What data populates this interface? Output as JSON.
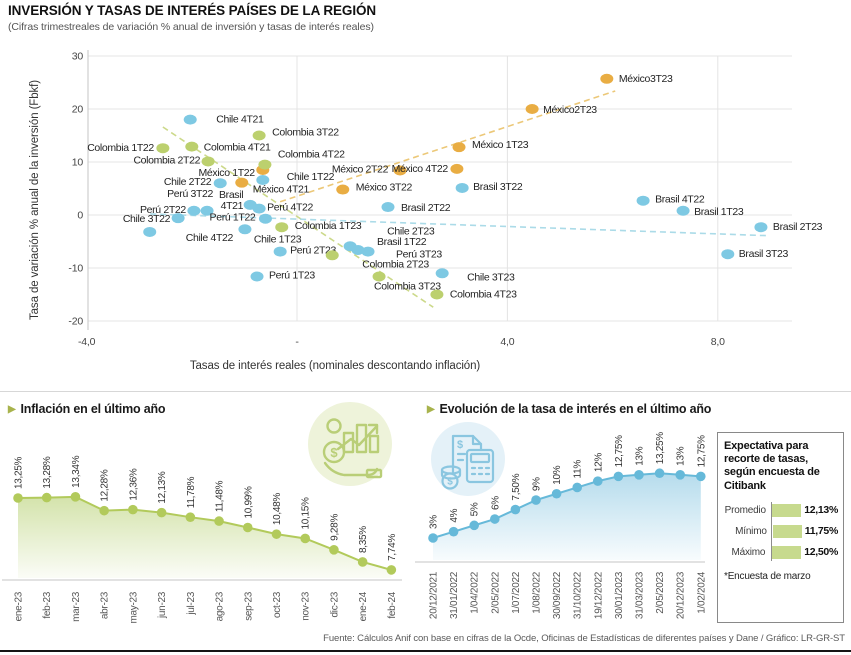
{
  "icons": {
    "left_chart": "money-growth-hand-icon",
    "right_chart": "calculator-invoice-icon",
    "section_marker": "triangle-right-icon"
  },
  "footer": {
    "source": "Fuente: Cálculos Anif con base en cifras de la Ocde, Oficinas de Estadísticas de diferentes países y Dane / Gráfico: LR-GR-ST"
  },
  "chart_data": [
    {
      "type": "scatter",
      "title": "INVERSIÓN Y TASAS DE INTERÉS PAÍSES DE LA REGIÓN",
      "subtitle": "(Cifras trimestreales de variación % anual de inversión y tasas de interés reales)",
      "xlabel": "Tasas de interés reales (nominales descontando inflación)",
      "ylabel": "Tasa de variación % anual de la inversión (Fbkf)",
      "xlim": [
        -4,
        10.5
      ],
      "ylim": [
        -20,
        30
      ],
      "grid": true,
      "x_ticks": [
        {
          "v": -4,
          "label": "-4,0"
        },
        {
          "v": 0,
          "label": "-"
        },
        {
          "v": 4,
          "label": "4,0"
        },
        {
          "v": 8,
          "label": "8,0"
        }
      ],
      "y_ticks": [
        30,
        20,
        10,
        0,
        -10,
        -20
      ],
      "series": [
        {
          "name": "Chile",
          "color": "#7ec9e3",
          "points": [
            {
              "label": "Chile 4T21",
              "x": -2.03,
              "y": 18.0,
              "dx": 26,
              "dy": 3,
              "anchor": "start"
            },
            {
              "label": "Chile 1T22",
              "x": -0.65,
              "y": 6.6,
              "dx": 24,
              "dy": 0,
              "anchor": "start"
            },
            {
              "label": "Chile 2T22",
              "x": -1.46,
              "y": 6.0,
              "dx": -9,
              "dy": 2,
              "anchor": "end"
            },
            {
              "label": "Chile 3T22",
              "x": -2.26,
              "y": -0.6,
              "dx": -8,
              "dy": 4,
              "anchor": "end"
            },
            {
              "label": "Chile 4T22",
              "x": -2.8,
              "y": -3.2,
              "dx": 36,
              "dy": 9,
              "anchor": "start"
            },
            {
              "label": "Chile 1T23",
              "x": -0.99,
              "y": -2.7,
              "dx": 9,
              "dy": 13,
              "anchor": "start"
            },
            {
              "label": "Chile 2T23",
              "x": 1.01,
              "y": -5.9,
              "dx": 37,
              "dy": -12,
              "anchor": "start"
            },
            {
              "label": "Chile 3T23",
              "x": 2.76,
              "y": -11.0,
              "dx": 25,
              "dy": 7,
              "anchor": "start"
            }
          ]
        },
        {
          "name": "Perú",
          "color": "#7ec9e3",
          "points": [
            {
              "label": "Perú 2T22",
              "x": -1.96,
              "y": 0.8,
              "dx": -8,
              "dy": 2,
              "anchor": "end"
            },
            {
              "label": "Perú 3T22",
              "x": -1.71,
              "y": 0.8,
              "dx": 6,
              "dy": -14,
              "anchor": "end"
            },
            {
              "label": "Perú 1T22",
              "x": -0.6,
              "y": -0.7,
              "dx": -10,
              "dy": 2,
              "anchor": "end"
            },
            {
              "label": "Perú 4T22",
              "x": -0.72,
              "y": 1.2,
              "dx": 8,
              "dy": 2,
              "anchor": "start"
            },
            {
              "label": "Perú 2T23",
              "x": -0.32,
              "y": -6.9,
              "dx": 10,
              "dy": 2,
              "anchor": "start"
            },
            {
              "label": "Perú 3T23",
              "x": 1.35,
              "y": -6.9,
              "dx": 28,
              "dy": 6,
              "anchor": "start"
            },
            {
              "label": "Perú 1T23",
              "x": -0.76,
              "y": -11.6,
              "dx": 12,
              "dy": 2,
              "anchor": "start"
            }
          ]
        },
        {
          "name": "Brasil",
          "color": "#7ec9e3",
          "points": [
            {
              "label": "Brasil 4T21",
              "lines": [
                "Brasil",
                "4T21"
              ],
              "x": -0.89,
              "y": 1.9,
              "dx": -7,
              "dy": -7,
              "anchor": "end"
            },
            {
              "label": "Brasil 1T22",
              "x": 1.16,
              "y": -6.6,
              "dx": 19,
              "dy": -5,
              "anchor": "start"
            },
            {
              "label": "Brasil 2T22",
              "x": 1.73,
              "y": 1.5,
              "dx": 13,
              "dy": 4,
              "anchor": "start"
            },
            {
              "label": "Brasil 3T22",
              "x": 3.14,
              "y": 5.1,
              "dx": 11,
              "dy": 2,
              "anchor": "start"
            },
            {
              "label": "Brasil 4T22",
              "x": 6.58,
              "y": 2.7,
              "dx": 12,
              "dy": 2,
              "anchor": "start"
            },
            {
              "label": "Brasil 1T23",
              "x": 7.34,
              "y": 0.8,
              "dx": 11,
              "dy": 4,
              "anchor": "start"
            },
            {
              "label": "Brasil 2T23",
              "x": 8.82,
              "y": -2.3,
              "dx": 12,
              "dy": 3,
              "anchor": "start"
            },
            {
              "label": "Brasil 3T23",
              "x": 8.19,
              "y": -7.4,
              "dx": 11,
              "dy": 3,
              "anchor": "start"
            }
          ]
        },
        {
          "name": "México",
          "color": "#e9ad43",
          "points": [
            {
              "label": "México 4T21",
              "x": -1.05,
              "y": 6.1,
              "dx": 11,
              "dy": 10,
              "anchor": "start"
            },
            {
              "label": "México 1T22",
              "x": -0.65,
              "y": 8.5,
              "dx": -8,
              "dy": 6,
              "anchor": "end"
            },
            {
              "label": "México 2T22",
              "x": 1.96,
              "y": 8.4,
              "dx": -12,
              "dy": 2,
              "anchor": "end"
            },
            {
              "label": "México 3T22",
              "x": 0.87,
              "y": 4.8,
              "dx": 13,
              "dy": 1,
              "anchor": "start"
            },
            {
              "label": "México 4T22",
              "x": 3.04,
              "y": 8.7,
              "dx": -9,
              "dy": 3,
              "anchor": "end"
            },
            {
              "label": "México 1T23",
              "x": 3.08,
              "y": 12.8,
              "dx": 13,
              "dy": 1,
              "anchor": "start"
            },
            {
              "label": "México2T23",
              "x": 4.47,
              "y": 20.0,
              "dx": 11,
              "dy": 4,
              "anchor": "start"
            },
            {
              "label": "México3T23",
              "x": 5.89,
              "y": 25.7,
              "dx": 12,
              "dy": 3,
              "anchor": "start"
            }
          ]
        },
        {
          "name": "Colombia",
          "color": "#bcd06e",
          "points": [
            {
              "label": "Colombia 1T22",
              "x": -2.55,
              "y": 12.6,
              "dx": -9,
              "dy": 3,
              "anchor": "end"
            },
            {
              "label": "Colombia 4T21",
              "x": -2.0,
              "y": 12.9,
              "dx": 12,
              "dy": 4,
              "anchor": "start"
            },
            {
              "label": "Colombia 2T22",
              "x": -1.69,
              "y": 10.1,
              "dx": -8,
              "dy": 2,
              "anchor": "end"
            },
            {
              "label": "Colombia 3T22",
              "x": -0.72,
              "y": 15.0,
              "dx": 13,
              "dy": 0,
              "anchor": "start"
            },
            {
              "label": "Colombia 4T22",
              "x": -0.61,
              "y": 9.5,
              "dx": 13,
              "dy": -7,
              "anchor": "start"
            },
            {
              "label": "Colombia 1T23",
              "x": -0.29,
              "y": -2.3,
              "dx": 13,
              "dy": 2,
              "anchor": "start"
            },
            {
              "label": "Colombia 2T23",
              "x": 0.67,
              "y": -7.6,
              "dx": 30,
              "dy": 12,
              "anchor": "start"
            },
            {
              "label": "Colombia 3T23",
              "x": 1.56,
              "y": -11.6,
              "dx": -5,
              "dy": 13,
              "anchor": "start"
            },
            {
              "label": "Colombia 4T23",
              "x": 2.66,
              "y": -15.0,
              "dx": 13,
              "dy": 3,
              "anchor": "start"
            }
          ]
        }
      ],
      "trendlines": [
        {
          "name": "colombia-trend",
          "color": "#ccd98a",
          "x1": -2.55,
          "y1": 16.6,
          "x2": 2.59,
          "y2": -17.4
        },
        {
          "name": "mexico-trend",
          "color": "#ecc878",
          "x1": -0.32,
          "y1": 2.5,
          "x2": 6.05,
          "y2": 23.4
        },
        {
          "name": "brasil-trend",
          "color": "#abdbe8",
          "x1": -2.79,
          "y1": 0.2,
          "x2": 8.95,
          "y2": -3.9
        }
      ]
    },
    {
      "type": "line",
      "title": "Inflación en el último año",
      "color": "#b2ca5b",
      "x": [
        "ene-23",
        "feb-23",
        "mar-23",
        "abr-23",
        "may-23",
        "jun-23",
        "jul-23",
        "ago-23",
        "sep-23",
        "oct-23",
        "nov-23",
        "dic-23",
        "ene-24",
        "feb-24"
      ],
      "values": [
        13.25,
        13.28,
        13.34,
        12.28,
        12.36,
        12.13,
        11.78,
        11.48,
        10.99,
        10.48,
        10.15,
        9.28,
        8.35,
        7.74
      ],
      "labels": [
        "13,25%",
        "13,28%",
        "13,34%",
        "12,28%",
        "12,36%",
        "12,13%",
        "11,78%",
        "11,48%",
        "10,99%",
        "10,48%",
        "10,15%",
        "9,28%",
        "8,35%",
        "7,74%"
      ]
    },
    {
      "type": "line",
      "title": "Evolución de la tasa de interés en el último año",
      "color": "#66b9d9",
      "x": [
        "20/12/2021",
        "31/01/2022",
        "1/04/2022",
        "2/05/2022",
        "1/07/2022",
        "1/08/2022",
        "30/09/2022",
        "31/10/2022",
        "19/12/2022",
        "30/01/2023",
        "31/03/2023",
        "2/05/2023",
        "20/12/2023",
        "1/02/2024"
      ],
      "values": [
        3,
        4,
        5,
        6,
        7.5,
        9,
        10,
        11,
        12,
        12.75,
        13,
        13.25,
        13,
        12.75
      ],
      "labels": [
        "3%",
        "4%",
        "5%",
        "6%",
        "7,50%",
        "9%",
        "10%",
        "11%",
        "12%",
        "12,75%",
        "13%",
        "13,25%",
        "13%",
        "12,75%"
      ]
    },
    {
      "type": "bar",
      "title": "Expectativa para recorte de tasas, según encuesta de Citibank",
      "bar_color": "#c7da8e",
      "categories": [
        "Promedio",
        "Mínimo",
        "Máximo"
      ],
      "values": [
        12.13,
        11.75,
        12.5
      ],
      "labels": [
        "12,13%",
        "11,75%",
        "12,50%"
      ],
      "footnote": "*Encuesta de marzo"
    }
  ]
}
